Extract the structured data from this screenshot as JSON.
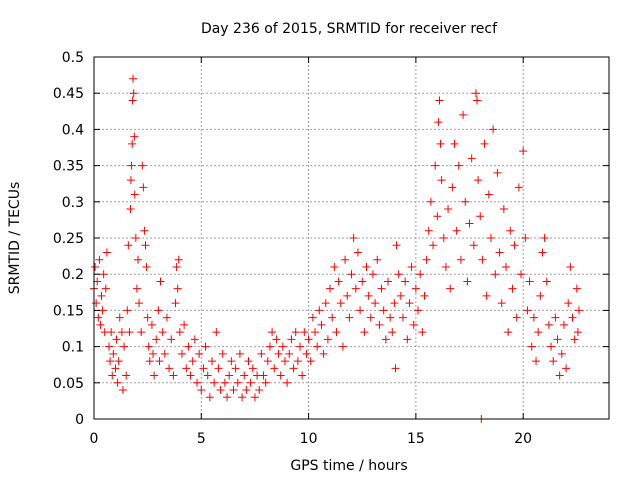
{
  "chart_data": {
    "type": "scatter",
    "title": "Day 236 of 2015, SRMTID for receiver recf",
    "xlabel": "GPS time / hours",
    "ylabel": "SRMTID / TECUs",
    "xlim": [
      0,
      24
    ],
    "ylim": [
      0,
      0.5
    ],
    "grid": true,
    "marker": "+",
    "x_ticks": [
      0,
      5,
      10,
      15,
      20
    ],
    "x_tick_labels": [
      "0",
      "5",
      "10",
      "15",
      "20"
    ],
    "y_ticks": [
      0,
      0.05,
      0.1,
      0.15,
      0.2,
      0.25,
      0.3,
      0.35,
      0.4,
      0.45,
      0.5
    ],
    "y_tick_labels": [
      "0",
      "0.05",
      "0.1",
      "0.15",
      "0.2",
      "0.25",
      "0.3",
      "0.35",
      "0.4",
      "0.45",
      "0.5"
    ],
    "colors": {
      "points": "#ff0000",
      "grid": "#a0a0a0",
      "axes": "#000000"
    },
    "series": [
      {
        "name": "SRMTID",
        "points": [
          [
            0.0,
            0.18
          ],
          [
            0.05,
            0.21
          ],
          [
            0.1,
            0.16
          ],
          [
            0.15,
            0.19
          ],
          [
            0.2,
            0.14
          ],
          [
            0.25,
            0.22
          ],
          [
            0.3,
            0.13
          ],
          [
            0.35,
            0.17
          ],
          [
            0.4,
            0.15
          ],
          [
            0.45,
            0.2
          ],
          [
            0.5,
            0.12
          ],
          [
            0.55,
            0.18
          ],
          [
            0.6,
            0.23
          ],
          [
            0.7,
            0.1
          ],
          [
            0.75,
            0.08
          ],
          [
            0.8,
            0.12
          ],
          [
            0.85,
            0.06
          ],
          [
            0.9,
            0.09
          ],
          [
            1.0,
            0.07
          ],
          [
            1.05,
            0.11
          ],
          [
            1.1,
            0.05
          ],
          [
            1.15,
            0.08
          ],
          [
            1.2,
            0.14
          ],
          [
            1.3,
            0.12
          ],
          [
            1.35,
            0.04
          ],
          [
            1.4,
            0.1
          ],
          [
            1.5,
            0.06
          ],
          [
            1.55,
            0.15
          ],
          [
            1.6,
            0.24
          ],
          [
            1.65,
            0.12
          ],
          [
            1.7,
            0.29
          ],
          [
            1.72,
            0.33
          ],
          [
            1.75,
            0.35
          ],
          [
            1.78,
            0.38
          ],
          [
            1.8,
            0.44
          ],
          [
            1.82,
            0.47
          ],
          [
            1.85,
            0.45
          ],
          [
            1.88,
            0.39
          ],
          [
            1.9,
            0.31
          ],
          [
            1.95,
            0.25
          ],
          [
            2.0,
            0.18
          ],
          [
            2.05,
            0.22
          ],
          [
            2.1,
            0.16
          ],
          [
            2.2,
            0.12
          ],
          [
            2.25,
            0.35
          ],
          [
            2.3,
            0.32
          ],
          [
            2.35,
            0.26
          ],
          [
            2.4,
            0.24
          ],
          [
            2.45,
            0.21
          ],
          [
            2.5,
            0.14
          ],
          [
            2.55,
            0.1
          ],
          [
            2.6,
            0.08
          ],
          [
            2.7,
            0.13
          ],
          [
            2.75,
            0.09
          ],
          [
            2.8,
            0.06
          ],
          [
            2.9,
            0.11
          ],
          [
            3.0,
            0.15
          ],
          [
            3.05,
            0.08
          ],
          [
            3.1,
            0.19
          ],
          [
            3.2,
            0.12
          ],
          [
            3.3,
            0.09
          ],
          [
            3.4,
            0.14
          ],
          [
            3.5,
            0.07
          ],
          [
            3.6,
            0.11
          ],
          [
            3.7,
            0.06
          ],
          [
            3.8,
            0.16
          ],
          [
            3.85,
            0.21
          ],
          [
            3.9,
            0.18
          ],
          [
            3.95,
            0.22
          ],
          [
            4.0,
            0.12
          ],
          [
            4.1,
            0.09
          ],
          [
            4.2,
            0.13
          ],
          [
            4.3,
            0.07
          ],
          [
            4.4,
            0.1
          ],
          [
            4.5,
            0.06
          ],
          [
            4.6,
            0.08
          ],
          [
            4.7,
            0.11
          ],
          [
            4.8,
            0.05
          ],
          [
            4.9,
            0.09
          ],
          [
            5.0,
            0.04
          ],
          [
            5.1,
            0.07
          ],
          [
            5.2,
            0.1
          ],
          [
            5.3,
            0.06
          ],
          [
            5.4,
            0.03
          ],
          [
            5.5,
            0.08
          ],
          [
            5.6,
            0.05
          ],
          [
            5.7,
            0.12
          ],
          [
            5.8,
            0.07
          ],
          [
            5.9,
            0.04
          ],
          [
            6.0,
            0.09
          ],
          [
            6.1,
            0.05
          ],
          [
            6.2,
            0.03
          ],
          [
            6.3,
            0.06
          ],
          [
            6.4,
            0.08
          ],
          [
            6.5,
            0.04
          ],
          [
            6.6,
            0.07
          ],
          [
            6.7,
            0.05
          ],
          [
            6.8,
            0.09
          ],
          [
            6.9,
            0.03
          ],
          [
            7.0,
            0.06
          ],
          [
            7.1,
            0.04
          ],
          [
            7.2,
            0.08
          ],
          [
            7.3,
            0.05
          ],
          [
            7.4,
            0.07
          ],
          [
            7.5,
            0.03
          ],
          [
            7.6,
            0.06
          ],
          [
            7.7,
            0.04
          ],
          [
            7.8,
            0.09
          ],
          [
            7.9,
            0.06
          ],
          [
            8.0,
            0.05
          ],
          [
            8.1,
            0.08
          ],
          [
            8.2,
            0.1
          ],
          [
            8.3,
            0.12
          ],
          [
            8.4,
            0.07
          ],
          [
            8.5,
            0.11
          ],
          [
            8.6,
            0.09
          ],
          [
            8.7,
            0.06
          ],
          [
            8.8,
            0.1
          ],
          [
            8.9,
            0.08
          ],
          [
            9.0,
            0.05
          ],
          [
            9.1,
            0.09
          ],
          [
            9.2,
            0.11
          ],
          [
            9.3,
            0.07
          ],
          [
            9.4,
            0.12
          ],
          [
            9.5,
            0.08
          ],
          [
            9.6,
            0.1
          ],
          [
            9.7,
            0.06
          ],
          [
            9.8,
            0.12
          ],
          [
            9.9,
            0.09
          ],
          [
            10.0,
            0.11
          ],
          [
            10.1,
            0.08
          ],
          [
            10.2,
            0.14
          ],
          [
            10.3,
            0.12
          ],
          [
            10.4,
            0.1
          ],
          [
            10.5,
            0.15
          ],
          [
            10.6,
            0.13
          ],
          [
            10.7,
            0.09
          ],
          [
            10.8,
            0.16
          ],
          [
            10.9,
            0.11
          ],
          [
            11.0,
            0.18
          ],
          [
            11.1,
            0.14
          ],
          [
            11.2,
            0.21
          ],
          [
            11.3,
            0.12
          ],
          [
            11.4,
            0.19
          ],
          [
            11.5,
            0.16
          ],
          [
            11.6,
            0.1
          ],
          [
            11.7,
            0.22
          ],
          [
            11.8,
            0.17
          ],
          [
            11.9,
            0.14
          ],
          [
            12.0,
            0.2
          ],
          [
            12.1,
            0.25
          ],
          [
            12.2,
            0.18
          ],
          [
            12.3,
            0.23
          ],
          [
            12.4,
            0.15
          ],
          [
            12.5,
            0.19
          ],
          [
            12.6,
            0.12
          ],
          [
            12.7,
            0.21
          ],
          [
            12.8,
            0.17
          ],
          [
            12.9,
            0.14
          ],
          [
            13.0,
            0.2
          ],
          [
            13.1,
            0.16
          ],
          [
            13.2,
            0.22
          ],
          [
            13.3,
            0.13
          ],
          [
            13.4,
            0.18
          ],
          [
            13.5,
            0.15
          ],
          [
            13.6,
            0.11
          ],
          [
            13.7,
            0.19
          ],
          [
            13.8,
            0.14
          ],
          [
            13.9,
            0.12
          ],
          [
            14.0,
            0.16
          ],
          [
            14.05,
            0.07
          ],
          [
            14.1,
            0.24
          ],
          [
            14.2,
            0.2
          ],
          [
            14.3,
            0.17
          ],
          [
            14.4,
            0.14
          ],
          [
            14.5,
            0.19
          ],
          [
            14.6,
            0.11
          ],
          [
            14.7,
            0.16
          ],
          [
            14.8,
            0.21
          ],
          [
            14.9,
            0.13
          ],
          [
            15.0,
            0.18
          ],
          [
            15.1,
            0.15
          ],
          [
            15.2,
            0.2
          ],
          [
            15.3,
            0.12
          ],
          [
            15.4,
            0.17
          ],
          [
            15.5,
            0.22
          ],
          [
            15.6,
            0.26
          ],
          [
            15.7,
            0.3
          ],
          [
            15.8,
            0.24
          ],
          [
            15.9,
            0.35
          ],
          [
            16.0,
            0.28
          ],
          [
            16.05,
            0.41
          ],
          [
            16.1,
            0.44
          ],
          [
            16.15,
            0.38
          ],
          [
            16.2,
            0.33
          ],
          [
            16.3,
            0.25
          ],
          [
            16.4,
            0.21
          ],
          [
            16.5,
            0.29
          ],
          [
            16.6,
            0.18
          ],
          [
            16.7,
            0.32
          ],
          [
            16.8,
            0.38
          ],
          [
            16.9,
            0.26
          ],
          [
            17.0,
            0.35
          ],
          [
            17.1,
            0.22
          ],
          [
            17.2,
            0.42
          ],
          [
            17.3,
            0.3
          ],
          [
            17.4,
            0.19
          ],
          [
            17.5,
            0.27
          ],
          [
            17.6,
            0.36
          ],
          [
            17.7,
            0.24
          ],
          [
            17.8,
            0.45
          ],
          [
            17.85,
            0.44
          ],
          [
            17.9,
            0.33
          ],
          [
            18.0,
            0.28
          ],
          [
            18.05,
            0.0
          ],
          [
            18.1,
            0.22
          ],
          [
            18.2,
            0.38
          ],
          [
            18.3,
            0.17
          ],
          [
            18.4,
            0.31
          ],
          [
            18.5,
            0.25
          ],
          [
            18.6,
            0.4
          ],
          [
            18.7,
            0.2
          ],
          [
            18.8,
            0.34
          ],
          [
            18.9,
            0.23
          ],
          [
            19.0,
            0.16
          ],
          [
            19.1,
            0.29
          ],
          [
            19.2,
            0.21
          ],
          [
            19.3,
            0.12
          ],
          [
            19.4,
            0.26
          ],
          [
            19.5,
            0.18
          ],
          [
            19.6,
            0.24
          ],
          [
            19.7,
            0.14
          ],
          [
            19.8,
            0.32
          ],
          [
            19.9,
            0.2
          ],
          [
            20.0,
            0.37
          ],
          [
            20.1,
            0.25
          ],
          [
            20.2,
            0.15
          ],
          [
            20.3,
            0.19
          ],
          [
            20.4,
            0.1
          ],
          [
            20.5,
            0.14
          ],
          [
            20.6,
            0.08
          ],
          [
            20.7,
            0.12
          ],
          [
            20.8,
            0.17
          ],
          [
            20.9,
            0.23
          ],
          [
            21.0,
            0.25
          ],
          [
            21.1,
            0.19
          ],
          [
            21.2,
            0.13
          ],
          [
            21.3,
            0.1
          ],
          [
            21.4,
            0.08
          ],
          [
            21.5,
            0.14
          ],
          [
            21.6,
            0.11
          ],
          [
            21.7,
            0.06
          ],
          [
            21.8,
            0.09
          ],
          [
            21.9,
            0.13
          ],
          [
            22.0,
            0.07
          ],
          [
            22.1,
            0.16
          ],
          [
            22.2,
            0.21
          ],
          [
            22.3,
            0.14
          ],
          [
            22.4,
            0.11
          ],
          [
            22.5,
            0.18
          ],
          [
            22.55,
            0.12
          ],
          [
            22.6,
            0.15
          ]
        ]
      }
    ]
  }
}
